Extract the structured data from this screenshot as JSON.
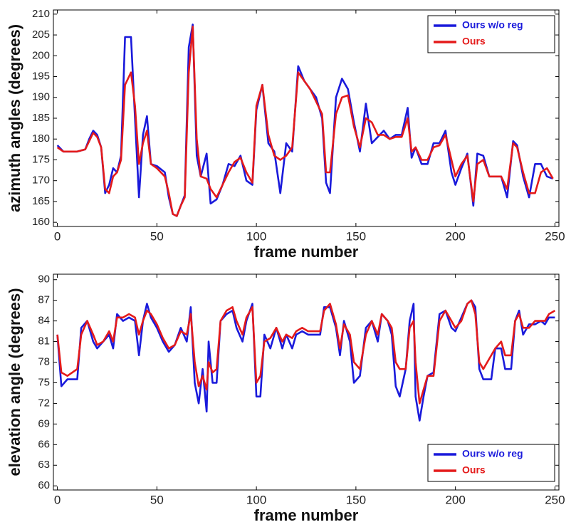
{
  "chart_data": [
    {
      "type": "line",
      "xlabel": "frame number",
      "ylabel": "azimuth angles (degrees)",
      "legend": "upper right",
      "xlim": [
        -2,
        252
      ],
      "ylim": [
        159,
        211
      ],
      "xticks": [
        0,
        50,
        100,
        150,
        200,
        250
      ],
      "yticks": [
        160,
        165,
        170,
        175,
        180,
        185,
        190,
        195,
        200,
        205,
        210
      ],
      "x": [
        0,
        3,
        5,
        10,
        14,
        16,
        18,
        20,
        22,
        24,
        26,
        28,
        30,
        32,
        34,
        37,
        39,
        41,
        43,
        45,
        47,
        50,
        54,
        56,
        58,
        60,
        62,
        64,
        66,
        68,
        70,
        72,
        75,
        77,
        80,
        83,
        86,
        89,
        92,
        95,
        98,
        100,
        103,
        106,
        109,
        112,
        115,
        118,
        121,
        124,
        127,
        130,
        133,
        135,
        137,
        140,
        143,
        146,
        149,
        152,
        155,
        158,
        161,
        164,
        167,
        170,
        173,
        176,
        178,
        180,
        183,
        186,
        189,
        192,
        195,
        198,
        200,
        203,
        206,
        209,
        211,
        214,
        217,
        220,
        223,
        226,
        229,
        231,
        234,
        237,
        240,
        243,
        246,
        249
      ],
      "series": [
        {
          "name": "Ours w/o reg",
          "color": "#1a1adb",
          "values": [
            178.5,
            177,
            177,
            177,
            177.5,
            180,
            182,
            181,
            178,
            167,
            169,
            173,
            172,
            176,
            204.5,
            204.5,
            185,
            166,
            181,
            185.5,
            174,
            173.5,
            172,
            166,
            162,
            161.5,
            164,
            166.5,
            202,
            207.5,
            176,
            171,
            176.5,
            164.5,
            165.5,
            169,
            174,
            173.5,
            176,
            170,
            169,
            187,
            193,
            179,
            177,
            167,
            179,
            177,
            197.5,
            194,
            192,
            190,
            185,
            169.5,
            167,
            190,
            194.5,
            192,
            184,
            177,
            188.5,
            179,
            180.5,
            182,
            180,
            181,
            181,
            187.5,
            175.5,
            178,
            174,
            174,
            179,
            179,
            182,
            172,
            169,
            173,
            176.5,
            164,
            176.5,
            176,
            171,
            171,
            171,
            166,
            179.5,
            178.5,
            171,
            166,
            174,
            174,
            171,
            170.5
          ]
        },
        {
          "name": "Ours",
          "color": "#e41a1a",
          "values": [
            178,
            177,
            177,
            177,
            177.5,
            179.5,
            181.5,
            180.5,
            178,
            168,
            167,
            171,
            172,
            175,
            193,
            196,
            188,
            174,
            179,
            182,
            174,
            173,
            171,
            167,
            162,
            161.5,
            164,
            166,
            196,
            207,
            180,
            171,
            170.5,
            168,
            166,
            169,
            172,
            174.5,
            175.5,
            172,
            169.5,
            188,
            193,
            181,
            176,
            175,
            176,
            178,
            196,
            194,
            192,
            189,
            186,
            172,
            172,
            186,
            190,
            190.5,
            183,
            178,
            185,
            184,
            181,
            181,
            180,
            180.5,
            180.5,
            185,
            177,
            178,
            175,
            175,
            178,
            178.5,
            181,
            175,
            171,
            174,
            176,
            165,
            174,
            175,
            171,
            171,
            171,
            168,
            179,
            178,
            172,
            167,
            167,
            172,
            173,
            170.5
          ]
        }
      ]
    },
    {
      "type": "line",
      "xlabel": "frame number",
      "ylabel": "elevation angle (degrees)",
      "legend": "lower right",
      "xlim": [
        -2,
        252
      ],
      "ylim": [
        59.4,
        90.8
      ],
      "xticks": [
        0,
        50,
        100,
        150,
        200,
        250
      ],
      "yticks": [
        60,
        63,
        66,
        69,
        72,
        75,
        78,
        81,
        84,
        87,
        90
      ],
      "x": [
        0,
        2,
        5,
        10,
        12,
        15,
        18,
        20,
        23,
        26,
        28,
        30,
        33,
        36,
        39,
        41,
        43,
        45,
        47,
        50,
        53,
        56,
        59,
        62,
        65,
        67,
        69,
        71,
        73,
        75,
        76,
        78,
        80,
        82,
        85,
        88,
        90,
        93,
        95,
        98,
        100,
        102,
        104,
        107,
        110,
        113,
        115,
        118,
        120,
        123,
        126,
        129,
        132,
        134,
        137,
        140,
        142,
        144,
        147,
        149,
        152,
        155,
        158,
        161,
        163,
        166,
        168,
        170,
        172,
        175,
        177,
        179,
        180,
        182,
        184,
        186,
        189,
        192,
        195,
        198,
        200,
        203,
        206,
        208,
        210,
        212,
        214,
        218,
        220,
        223,
        225,
        228,
        230,
        232,
        234,
        237,
        240,
        243,
        245,
        247,
        250
      ],
      "series": [
        {
          "name": "Ours w/o reg",
          "color": "#1a1adb",
          "values": [
            82,
            74.5,
            75.5,
            75.5,
            83,
            84,
            81,
            80,
            81,
            82,
            80,
            85,
            84,
            84.5,
            84,
            79,
            84,
            86.5,
            84.5,
            83,
            81,
            79.5,
            80.5,
            83,
            81,
            86,
            75,
            72,
            77,
            70.8,
            81,
            75,
            75,
            84,
            85,
            85.5,
            83,
            81,
            84,
            86.5,
            73,
            73,
            82,
            80,
            83,
            80,
            82,
            80,
            82,
            82.5,
            82,
            82,
            82,
            86,
            86,
            83,
            79,
            84,
            81,
            75,
            76,
            83,
            84,
            81,
            85,
            84,
            82,
            74.5,
            73,
            77,
            84,
            86.5,
            73,
            69.5,
            73,
            76,
            76.5,
            85,
            85.5,
            83,
            82.5,
            84.5,
            86.5,
            87,
            86,
            77,
            75.5,
            75.5,
            80,
            80,
            77,
            77,
            84,
            85.5,
            82,
            83.5,
            83.5,
            84,
            83.5,
            84.5,
            84.5
          ]
        },
        {
          "name": "Ours",
          "color": "#e41a1a",
          "values": [
            82,
            76.5,
            76,
            77,
            82,
            84,
            82,
            80.5,
            81,
            82.5,
            81,
            84.5,
            84.5,
            85,
            84.5,
            82,
            84,
            85.5,
            85,
            83.5,
            81.5,
            80,
            80.5,
            82.5,
            82,
            85,
            78,
            74.5,
            76,
            74,
            78,
            76.5,
            77,
            84,
            85.5,
            86,
            84,
            82,
            84.5,
            86,
            75,
            76,
            81,
            81.5,
            83,
            81,
            82,
            81.5,
            82.5,
            83,
            82.5,
            82.5,
            82.5,
            85.5,
            86.5,
            83.5,
            80,
            83.5,
            82,
            78,
            77,
            82,
            84,
            82,
            85,
            84,
            83,
            78,
            77,
            77,
            83,
            84,
            78,
            72,
            74,
            76,
            76,
            84,
            85.5,
            84,
            83,
            84,
            86.5,
            87,
            85,
            78,
            77,
            79,
            80,
            81,
            79,
            79,
            84,
            85,
            83,
            83,
            84,
            84,
            84,
            85,
            85.5
          ]
        }
      ]
    }
  ]
}
